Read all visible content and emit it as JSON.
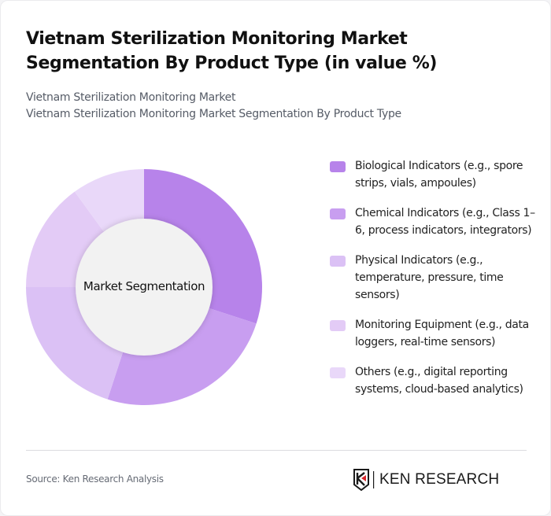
{
  "header": {
    "title": "Vietnam Sterilization Monitoring Market Segmentation By Product Type (in value %)",
    "subtitle_line1": "Vietnam Sterilization Monitoring Market",
    "subtitle_line2": "Vietnam Sterilization Monitoring Market Segmentation By Product Type"
  },
  "chart": {
    "center_label": "Market Segmentation"
  },
  "legend": {
    "items": [
      {
        "label": "Biological Indicators (e.g., spore strips, vials, ampoules)",
        "color": "#b783ea"
      },
      {
        "label": "Chemical Indicators (e.g., Class 1–6, process indicators, integrators)",
        "color": "#c89ef0"
      },
      {
        "label": "Physical Indicators (e.g., temperature, pressure, time sensors)",
        "color": "#dbc1f5"
      },
      {
        "label": "Monitoring Equipment (e.g., data loggers, real-time sensors)",
        "color": "#e3cbf6"
      },
      {
        "label": "Others (e.g., digital reporting systems, cloud-based analytics)",
        "color": "#e9d8f9"
      }
    ]
  },
  "footer": {
    "source": "Source: Ken Research Analysis",
    "logo_text": "KEN RESEARCH"
  },
  "chart_data": {
    "type": "pie",
    "subtype": "donut",
    "title": "Vietnam Sterilization Monitoring Market Segmentation By Product Type (in value %)",
    "center_label": "Market Segmentation",
    "categories": [
      "Biological Indicators (e.g., spore strips, vials, ampoules)",
      "Chemical Indicators (e.g., Class 1–6, process indicators, integrators)",
      "Physical Indicators (e.g., temperature, pressure, time sensors)",
      "Monitoring Equipment (e.g., data loggers, real-time sensors)",
      "Others (e.g., digital reporting systems, cloud-based analytics)"
    ],
    "values": [
      30,
      25,
      20,
      15,
      10
    ],
    "colors": [
      "#b783ea",
      "#c89ef0",
      "#dbc1f5",
      "#e3cbf6",
      "#e9d8f9"
    ],
    "legend_position": "right",
    "unit": "%"
  }
}
